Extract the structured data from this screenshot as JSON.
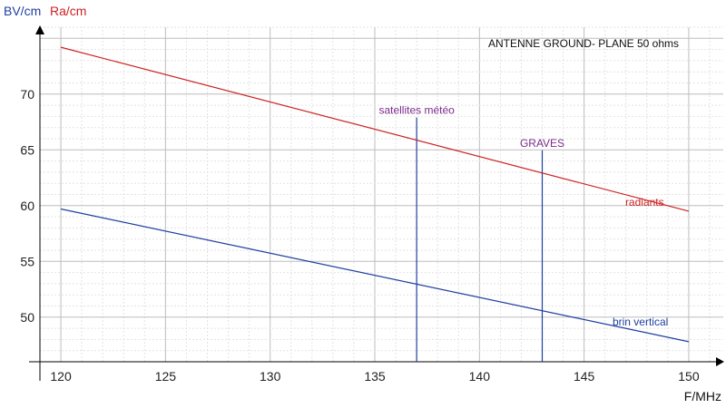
{
  "chart_data": {
    "type": "line",
    "title": "ANTENNE GROUND- PLANE 50 ohms",
    "xlabel": "F/MHz",
    "ylabels": [
      {
        "text": "BV/cm",
        "color": "#1f3fa0"
      },
      {
        "text": "Ra/cm",
        "color": "#cc2222"
      }
    ],
    "xlim": [
      119,
      151
    ],
    "ylim": [
      46,
      76
    ],
    "xticks": [
      120,
      125,
      130,
      135,
      140,
      145,
      150
    ],
    "yticks": [
      50,
      55,
      60,
      65,
      70
    ],
    "grid": true,
    "series": [
      {
        "name": "radiants",
        "color": "#cc2222",
        "x": [
          120,
          150
        ],
        "y": [
          74.2,
          59.5
        ]
      },
      {
        "name": "brin vertical",
        "color": "#1f3fa0",
        "x": [
          120,
          150
        ],
        "y": [
          59.7,
          47.8
        ]
      }
    ],
    "vlines": [
      {
        "label": "satellites météo",
        "x": 137.0,
        "label_color": "#7a2b8a",
        "line_color": "#1f3fa0"
      },
      {
        "label": "GRAVES",
        "x": 143.0,
        "label_color": "#7a2b8a",
        "line_color": "#1f3fa0"
      }
    ]
  }
}
